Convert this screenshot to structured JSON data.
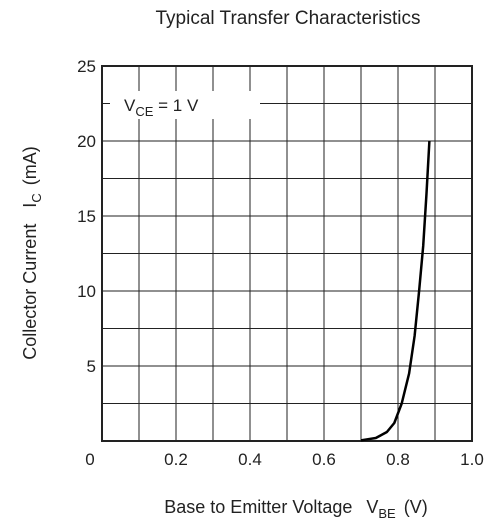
{
  "chart_data": {
    "type": "line",
    "title": "Typical Transfer Characteristics",
    "xlabel": {
      "main": "Base to Emitter Voltage",
      "symbol": "V",
      "symbol_sub": "BE",
      "unit": "(V)"
    },
    "ylabel": {
      "main": "Collector Current",
      "symbol": "I",
      "symbol_sub": "C",
      "unit": "(mA)"
    },
    "xlim": [
      0,
      1.0
    ],
    "ylim": [
      0,
      25
    ],
    "x_ticks": [
      0,
      0.2,
      0.4,
      0.6,
      0.8,
      1.0
    ],
    "x_tick_labels": [
      "0",
      "0.2",
      "0.4",
      "0.6",
      "0.8",
      "1.0"
    ],
    "y_ticks": [
      5,
      10,
      15,
      20,
      25
    ],
    "y_tick_labels": [
      "5",
      "10",
      "15",
      "20",
      "25"
    ],
    "grid": true,
    "annotation": {
      "symbol": "V",
      "symbol_sub": "CE",
      "value": " = 1 V"
    },
    "series": [
      {
        "x": [
          0.7,
          0.74,
          0.77,
          0.79,
          0.81,
          0.83,
          0.845,
          0.857,
          0.868,
          0.877,
          0.885
        ],
        "y": [
          0.05,
          0.2,
          0.6,
          1.2,
          2.5,
          4.5,
          7.0,
          10.0,
          13.0,
          16.5,
          20.0
        ]
      }
    ],
    "colors": {
      "axis": "#222222",
      "line": "#000000",
      "background": "#ffffff"
    }
  }
}
